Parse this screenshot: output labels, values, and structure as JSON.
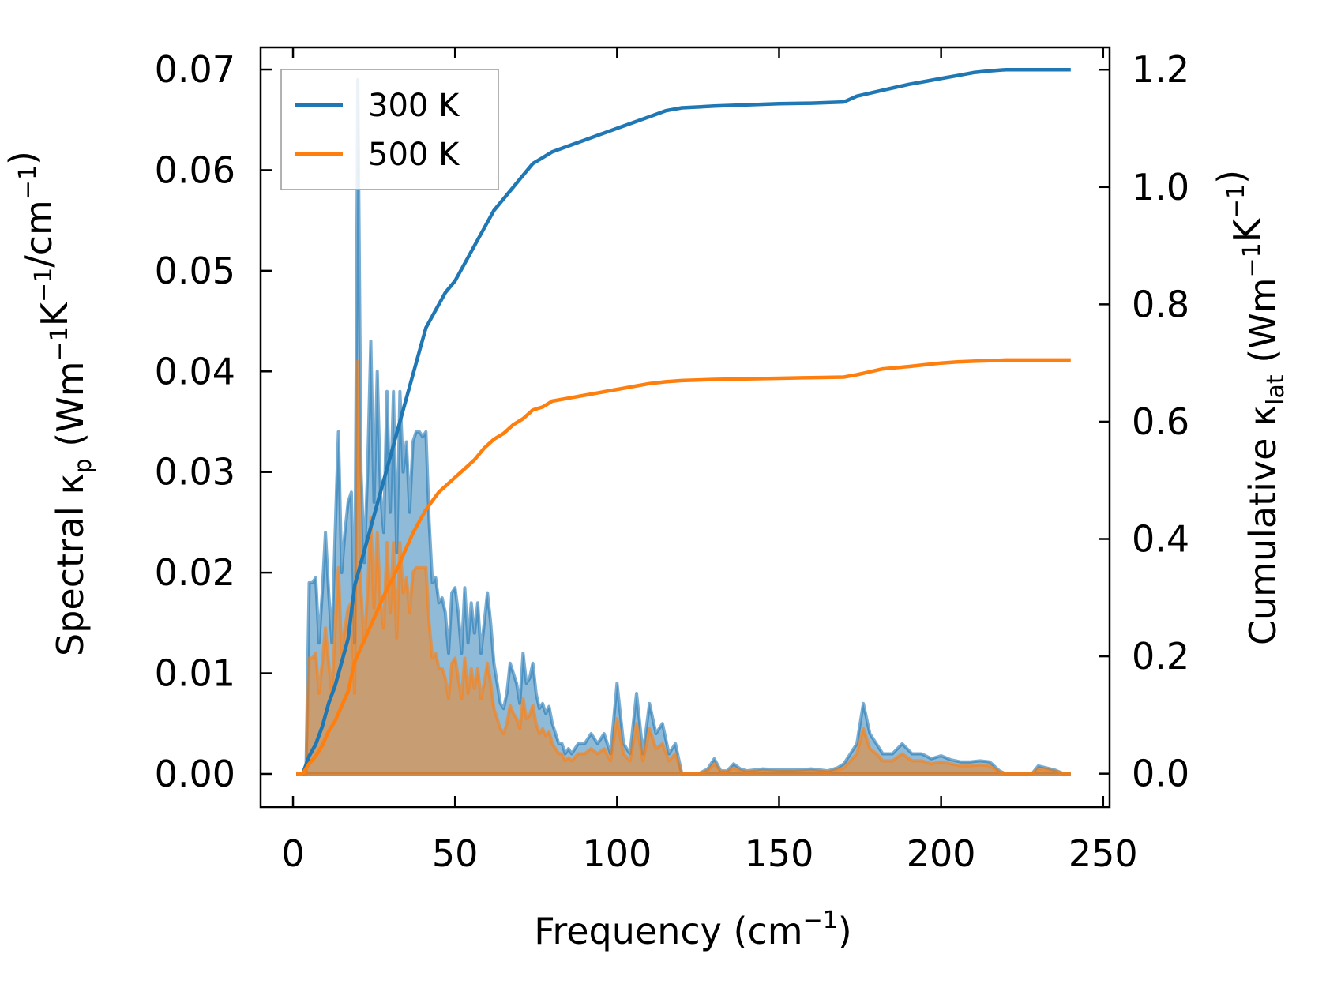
{
  "chart_data": {
    "type": "area",
    "xlabel": "Frequency",
    "xlabel_unit": "cm",
    "xlabel_unit_exp": "−1",
    "xlim": [
      -10,
      252
    ],
    "xticks": [
      0,
      50,
      100,
      150,
      200,
      250
    ],
    "left_axis": {
      "label_main": "Spectral κ",
      "label_sub": "p",
      "label_unit_base": "Wm",
      "label_unit_parts": [
        {
          "base": "Wm",
          "exp": "−1"
        },
        {
          "base": "K",
          "exp": "−1"
        },
        {
          "base": "/cm",
          "exp": "−1"
        }
      ],
      "ylim": [
        -0.0033,
        0.0722
      ],
      "yticks": [
        0.0,
        0.01,
        0.02,
        0.03,
        0.04,
        0.05,
        0.06,
        0.07
      ],
      "tick_format": 2
    },
    "right_axis": {
      "label_main": "Cumulative κ",
      "label_sub": "lat",
      "label_unit_parts": [
        {
          "base": "Wm",
          "exp": "−1"
        },
        {
          "base": "K",
          "exp": "−1"
        }
      ],
      "ylim": [
        -0.057,
        1.238
      ],
      "yticks": [
        0.0,
        0.2,
        0.4,
        0.6,
        0.8,
        1.0,
        1.2
      ],
      "tick_format": 1
    },
    "legend": {
      "position": "top-left",
      "entries": [
        "300 K",
        "500 K"
      ]
    },
    "series": [
      {
        "name": "300 K",
        "color": "#1f77b4",
        "spectral": {
          "x": [
            1,
            2,
            3,
            4,
            5,
            6,
            7,
            8,
            9,
            10,
            11,
            12,
            13,
            14,
            15,
            16,
            17,
            18,
            19,
            20,
            21,
            22,
            23,
            24,
            25,
            26,
            27,
            28,
            29,
            30,
            31,
            32,
            33,
            34,
            35,
            36,
            37,
            38,
            39,
            40,
            41,
            42,
            43,
            44,
            45,
            46,
            47,
            48,
            49,
            50,
            51,
            52,
            53,
            54,
            55,
            56,
            57,
            58,
            59,
            60,
            61,
            62,
            63,
            64,
            65,
            66,
            67,
            68,
            69,
            70,
            71,
            72,
            73,
            74,
            75,
            76,
            77,
            78,
            79,
            80,
            81,
            82,
            83,
            84,
            85,
            86,
            88,
            90,
            92,
            94,
            96,
            98,
            100,
            102,
            104,
            106,
            108,
            110,
            112,
            114,
            116,
            118,
            120,
            122,
            125,
            128,
            130,
            132,
            134,
            136,
            138,
            140,
            145,
            150,
            155,
            160,
            165,
            168,
            170,
            172,
            174,
            176,
            178,
            180,
            182,
            185,
            188,
            191,
            194,
            197,
            200,
            203,
            206,
            209,
            212,
            215,
            218,
            220,
            225,
            228,
            230,
            235,
            238,
            240
          ],
          "values": [
            0.0,
            0.0,
            0.0,
            0.0,
            0.019,
            0.019,
            0.0195,
            0.013,
            0.018,
            0.024,
            0.018,
            0.013,
            0.024,
            0.034,
            0.02,
            0.024,
            0.027,
            0.028,
            0.013,
            0.069,
            0.03,
            0.021,
            0.03,
            0.043,
            0.027,
            0.04,
            0.028,
            0.024,
            0.038,
            0.026,
            0.038,
            0.022,
            0.038,
            0.03,
            0.033,
            0.026,
            0.033,
            0.034,
            0.034,
            0.0335,
            0.034,
            0.025,
            0.019,
            0.0195,
            0.017,
            0.0175,
            0.016,
            0.012,
            0.018,
            0.0185,
            0.016,
            0.012,
            0.0185,
            0.013,
            0.017,
            0.014,
            0.017,
            0.012,
            0.015,
            0.018,
            0.015,
            0.011,
            0.009,
            0.007,
            0.0065,
            0.008,
            0.011,
            0.01,
            0.009,
            0.007,
            0.012,
            0.009,
            0.0095,
            0.011,
            0.008,
            0.0065,
            0.007,
            0.006,
            0.0067,
            0.005,
            0.004,
            0.003,
            0.003,
            0.002,
            0.0025,
            0.002,
            0.003,
            0.003,
            0.004,
            0.003,
            0.004,
            0.002,
            0.009,
            0.003,
            0.002,
            0.008,
            0.002,
            0.007,
            0.004,
            0.005,
            0.002,
            0.003,
            0.0,
            0.0,
            0.0,
            0.0005,
            0.0015,
            0.0003,
            0.0003,
            0.001,
            0.0005,
            0.0003,
            0.0005,
            0.0004,
            0.0004,
            0.0005,
            0.0003,
            0.0006,
            0.001,
            0.002,
            0.003,
            0.007,
            0.004,
            0.003,
            0.002,
            0.002,
            0.003,
            0.002,
            0.002,
            0.0015,
            0.0018,
            0.0014,
            0.0012,
            0.0012,
            0.0013,
            0.0012,
            0.0003,
            0.0,
            0.0,
            0.0,
            0.0008,
            0.0004,
            0.0,
            0.0
          ]
        },
        "cumulative": {
          "x": [
            1,
            3,
            5,
            7,
            9,
            11,
            13,
            15,
            17,
            19,
            21,
            23,
            25,
            27,
            29,
            31,
            33,
            35,
            37,
            39,
            41,
            43,
            45,
            47,
            50,
            53,
            56,
            59,
            62,
            65,
            68,
            71,
            74,
            77,
            80,
            85,
            90,
            95,
            100,
            105,
            110,
            115,
            120,
            130,
            140,
            150,
            160,
            170,
            174,
            178,
            182,
            186,
            190,
            195,
            200,
            205,
            210,
            215,
            220,
            225,
            230,
            235,
            240
          ],
          "values": [
            0.0,
            0.0,
            0.03,
            0.05,
            0.08,
            0.12,
            0.15,
            0.19,
            0.23,
            0.32,
            0.36,
            0.4,
            0.44,
            0.48,
            0.52,
            0.56,
            0.6,
            0.64,
            0.68,
            0.72,
            0.76,
            0.78,
            0.8,
            0.82,
            0.84,
            0.87,
            0.9,
            0.93,
            0.96,
            0.98,
            1.0,
            1.02,
            1.04,
            1.05,
            1.06,
            1.07,
            1.08,
            1.09,
            1.1,
            1.11,
            1.12,
            1.13,
            1.135,
            1.138,
            1.14,
            1.142,
            1.143,
            1.145,
            1.155,
            1.16,
            1.165,
            1.17,
            1.175,
            1.18,
            1.185,
            1.19,
            1.195,
            1.198,
            1.2,
            1.2,
            1.2,
            1.2,
            1.2
          ]
        }
      },
      {
        "name": "500 K",
        "color": "#ff7f0e",
        "spectral": {
          "x": [
            1,
            2,
            3,
            4,
            5,
            6,
            7,
            8,
            9,
            10,
            11,
            12,
            13,
            14,
            15,
            16,
            17,
            18,
            19,
            20,
            21,
            22,
            23,
            24,
            25,
            26,
            27,
            28,
            29,
            30,
            31,
            32,
            33,
            34,
            35,
            36,
            37,
            38,
            39,
            40,
            41,
            42,
            43,
            44,
            45,
            46,
            47,
            48,
            49,
            50,
            51,
            52,
            53,
            54,
            55,
            56,
            57,
            58,
            59,
            60,
            61,
            62,
            63,
            64,
            65,
            66,
            67,
            68,
            69,
            70,
            71,
            72,
            73,
            74,
            75,
            76,
            77,
            78,
            79,
            80,
            81,
            82,
            83,
            84,
            85,
            86,
            88,
            90,
            92,
            94,
            96,
            98,
            100,
            102,
            104,
            106,
            108,
            110,
            112,
            114,
            116,
            118,
            120,
            122,
            125,
            128,
            130,
            132,
            134,
            136,
            138,
            140,
            145,
            150,
            155,
            160,
            165,
            168,
            170,
            172,
            174,
            176,
            178,
            180,
            182,
            185,
            188,
            191,
            194,
            197,
            200,
            203,
            206,
            209,
            212,
            215,
            218,
            220,
            225,
            228,
            230,
            235,
            238,
            240
          ],
          "values": [
            0.0,
            0.0,
            0.0,
            0.0,
            0.0115,
            0.0115,
            0.012,
            0.008,
            0.011,
            0.0145,
            0.011,
            0.008,
            0.0145,
            0.0205,
            0.012,
            0.0145,
            0.0165,
            0.017,
            0.008,
            0.041,
            0.018,
            0.013,
            0.018,
            0.0255,
            0.0165,
            0.024,
            0.017,
            0.0145,
            0.023,
            0.016,
            0.023,
            0.0135,
            0.023,
            0.018,
            0.0195,
            0.016,
            0.02,
            0.0205,
            0.0205,
            0.0205,
            0.0205,
            0.015,
            0.0115,
            0.012,
            0.0105,
            0.0105,
            0.0095,
            0.0075,
            0.011,
            0.0115,
            0.0095,
            0.0075,
            0.0115,
            0.008,
            0.0105,
            0.0085,
            0.0105,
            0.0075,
            0.009,
            0.011,
            0.009,
            0.0065,
            0.0055,
            0.0045,
            0.004,
            0.005,
            0.0068,
            0.006,
            0.0055,
            0.0045,
            0.0075,
            0.0055,
            0.0058,
            0.0068,
            0.005,
            0.004,
            0.0045,
            0.0038,
            0.0042,
            0.003,
            0.0025,
            0.002,
            0.002,
            0.0013,
            0.0016,
            0.0013,
            0.002,
            0.002,
            0.0025,
            0.002,
            0.0025,
            0.0013,
            0.0055,
            0.002,
            0.0013,
            0.005,
            0.0013,
            0.0045,
            0.0025,
            0.003,
            0.0013,
            0.002,
            0.0,
            0.0,
            0.0,
            0.0003,
            0.001,
            0.0002,
            0.0002,
            0.0006,
            0.0003,
            0.0002,
            0.0003,
            0.0003,
            0.0003,
            0.0003,
            0.0002,
            0.0004,
            0.0006,
            0.0013,
            0.002,
            0.0045,
            0.0025,
            0.002,
            0.0013,
            0.0013,
            0.002,
            0.0013,
            0.0013,
            0.001,
            0.0012,
            0.001,
            0.0008,
            0.0008,
            0.0009,
            0.0008,
            0.0002,
            0.0,
            0.0,
            0.0,
            0.0005,
            0.0003,
            0.0,
            0.0
          ]
        },
        "cumulative": {
          "x": [
            1,
            3,
            5,
            7,
            9,
            11,
            13,
            15,
            17,
            19,
            21,
            23,
            25,
            27,
            29,
            31,
            33,
            35,
            37,
            39,
            41,
            43,
            45,
            47,
            50,
            53,
            56,
            59,
            62,
            65,
            68,
            71,
            74,
            77,
            80,
            85,
            90,
            95,
            100,
            105,
            110,
            115,
            120,
            130,
            140,
            150,
            160,
            170,
            174,
            178,
            182,
            186,
            190,
            195,
            200,
            205,
            210,
            215,
            220,
            225,
            230,
            235,
            240
          ],
          "values": [
            0.0,
            0.0,
            0.017,
            0.03,
            0.048,
            0.072,
            0.09,
            0.115,
            0.14,
            0.19,
            0.215,
            0.24,
            0.265,
            0.29,
            0.315,
            0.335,
            0.36,
            0.385,
            0.41,
            0.43,
            0.45,
            0.465,
            0.48,
            0.49,
            0.505,
            0.52,
            0.535,
            0.555,
            0.57,
            0.58,
            0.595,
            0.605,
            0.62,
            0.625,
            0.635,
            0.64,
            0.645,
            0.65,
            0.655,
            0.66,
            0.665,
            0.668,
            0.67,
            0.672,
            0.673,
            0.674,
            0.675,
            0.676,
            0.68,
            0.685,
            0.69,
            0.692,
            0.694,
            0.697,
            0.7,
            0.702,
            0.703,
            0.704,
            0.705,
            0.705,
            0.705,
            0.705,
            0.705
          ]
        }
      }
    ]
  }
}
